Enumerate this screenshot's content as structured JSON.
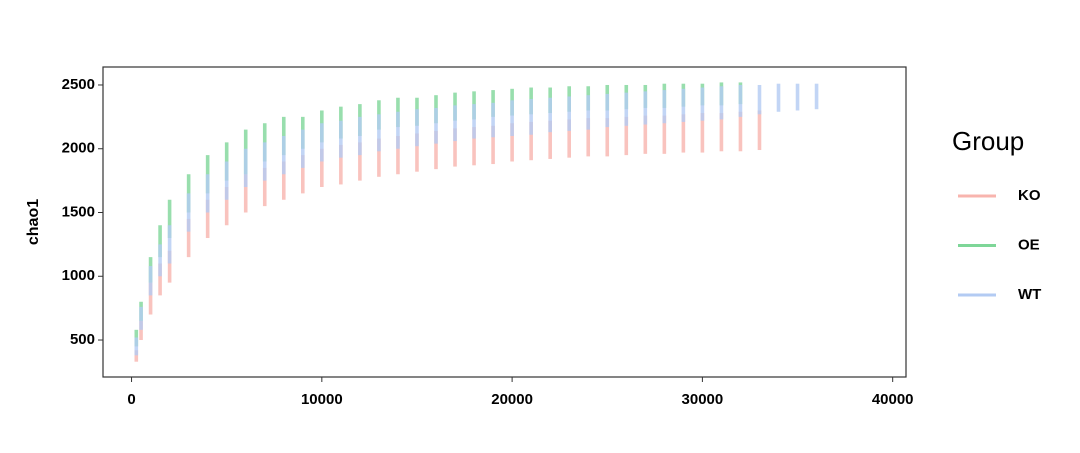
{
  "chart_data": {
    "type": "range",
    "y_label": "chao1",
    "legend_title": "Group",
    "legend_position": "right",
    "grid": false,
    "xlim": [
      -1500,
      40700
    ],
    "ylim": [
      210,
      2641
    ],
    "xticks": [
      0,
      10000,
      20000,
      30000,
      40000
    ],
    "yticks": [
      500,
      1000,
      1500,
      2000,
      2500
    ],
    "series": [
      {
        "name": "KO",
        "color": "#f8b4ae",
        "x": [
          250,
          500,
          1000,
          1500,
          2000,
          3000,
          4000,
          5000,
          6000,
          7000,
          8000,
          9000,
          10000,
          11000,
          12000,
          13000,
          14000,
          15000,
          16000,
          17000,
          18000,
          19000,
          20000,
          21000,
          22000,
          23000,
          24000,
          25000,
          26000,
          27000,
          28000,
          29000,
          30000,
          31000,
          32000,
          33000
        ],
        "low": [
          330,
          500,
          700,
          850,
          950,
          1150,
          1300,
          1400,
          1500,
          1550,
          1600,
          1650,
          1700,
          1720,
          1750,
          1780,
          1800,
          1820,
          1840,
          1860,
          1870,
          1880,
          1900,
          1910,
          1920,
          1930,
          1940,
          1940,
          1950,
          1960,
          1960,
          1970,
          1970,
          1980,
          1980,
          1990
        ],
        "high": [
          420,
          650,
          950,
          1100,
          1200,
          1450,
          1600,
          1700,
          1800,
          1850,
          1900,
          1950,
          2000,
          2030,
          2050,
          2080,
          2100,
          2120,
          2140,
          2160,
          2170,
          2180,
          2200,
          2210,
          2220,
          2230,
          2240,
          2240,
          2250,
          2260,
          2260,
          2270,
          2280,
          2280,
          2290,
          2300
        ]
      },
      {
        "name": "OE",
        "color": "#7ed698",
        "x": [
          250,
          500,
          1000,
          1500,
          2000,
          3000,
          4000,
          5000,
          6000,
          7000,
          8000,
          9000,
          10000,
          11000,
          12000,
          13000,
          14000,
          15000,
          16000,
          17000,
          18000,
          19000,
          20000,
          21000,
          22000,
          23000,
          24000,
          25000,
          26000,
          27000,
          28000,
          29000,
          30000,
          31000,
          32000
        ],
        "low": [
          450,
          650,
          950,
          1150,
          1300,
          1500,
          1650,
          1750,
          1800,
          1900,
          1950,
          2000,
          2050,
          2080,
          2100,
          2150,
          2170,
          2180,
          2200,
          2220,
          2230,
          2250,
          2260,
          2270,
          2280,
          2290,
          2300,
          2300,
          2310,
          2320,
          2320,
          2330,
          2340,
          2340,
          2350
        ],
        "high": [
          580,
          800,
          1150,
          1400,
          1600,
          1800,
          1950,
          2050,
          2150,
          2200,
          2250,
          2250,
          2300,
          2330,
          2350,
          2380,
          2400,
          2400,
          2420,
          2440,
          2450,
          2460,
          2470,
          2480,
          2480,
          2490,
          2490,
          2500,
          2500,
          2500,
          2510,
          2510,
          2510,
          2520,
          2520
        ]
      },
      {
        "name": "WT",
        "color": "#b3cbf3",
        "x": [
          250,
          500,
          1000,
          1500,
          2000,
          3000,
          4000,
          5000,
          6000,
          7000,
          8000,
          9000,
          10000,
          11000,
          12000,
          13000,
          14000,
          15000,
          16000,
          17000,
          18000,
          19000,
          20000,
          21000,
          22000,
          23000,
          24000,
          25000,
          26000,
          27000,
          28000,
          29000,
          30000,
          31000,
          32000,
          33000,
          34000,
          35000,
          36000
        ],
        "low": [
          380,
          580,
          850,
          1000,
          1100,
          1350,
          1500,
          1600,
          1700,
          1750,
          1800,
          1850,
          1900,
          1930,
          1950,
          1980,
          2000,
          2020,
          2040,
          2060,
          2080,
          2090,
          2100,
          2110,
          2130,
          2140,
          2150,
          2170,
          2180,
          2190,
          2200,
          2210,
          2220,
          2230,
          2250,
          2270,
          2290,
          2300,
          2310
        ],
        "high": [
          520,
          760,
          1080,
          1250,
          1400,
          1650,
          1800,
          1900,
          2000,
          2050,
          2100,
          2150,
          2200,
          2220,
          2250,
          2270,
          2290,
          2310,
          2320,
          2340,
          2350,
          2360,
          2380,
          2390,
          2400,
          2410,
          2420,
          2430,
          2440,
          2450,
          2460,
          2470,
          2480,
          2490,
          2500,
          2500,
          2510,
          2510,
          2510
        ]
      }
    ]
  }
}
